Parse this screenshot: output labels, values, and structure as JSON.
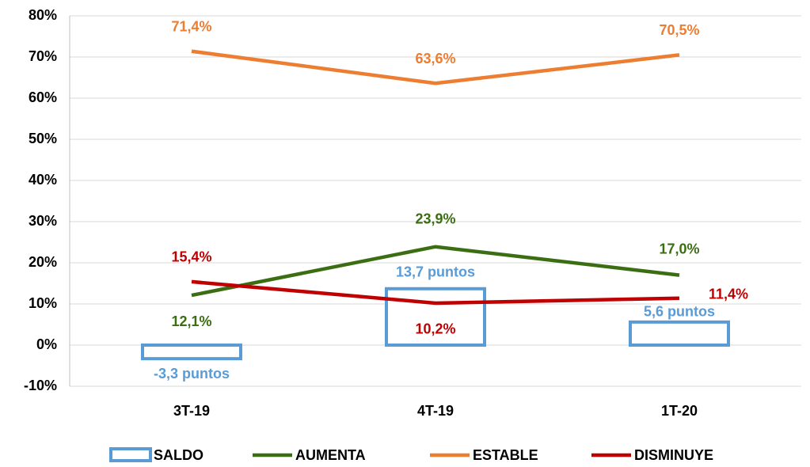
{
  "chart_data": {
    "type": "combo",
    "categories": [
      "3T-19",
      "4T-19",
      "1T-20"
    ],
    "series": [
      {
        "name": "SALDO",
        "type": "bar",
        "color": "#5b9bd5",
        "values": [
          -3.3,
          13.7,
          5.6
        ],
        "value_labels": [
          "-3,3 puntos",
          "13,7 puntos",
          "5,6 puntos"
        ]
      },
      {
        "name": "AUMENTA",
        "type": "line",
        "color": "#3b6e12",
        "values": [
          12.1,
          23.9,
          17.0
        ],
        "value_labels": [
          "12,1%",
          "23,9%",
          "17,0%"
        ]
      },
      {
        "name": "ESTABLE",
        "type": "line",
        "color": "#ed7d31",
        "values": [
          71.4,
          63.6,
          70.5
        ],
        "value_labels": [
          "71,4%",
          "63,6%",
          "70,5%"
        ]
      },
      {
        "name": "DISMINUYE",
        "type": "line",
        "color": "#c00000",
        "values": [
          15.4,
          10.2,
          11.4
        ],
        "value_labels": [
          "15,4%",
          "10,2%",
          "11,4%"
        ]
      }
    ],
    "ylim": [
      -10,
      80
    ],
    "yticks": [
      {
        "value": -10,
        "label": "-10%"
      },
      {
        "value": 0,
        "label": "0%"
      },
      {
        "value": 10,
        "label": "10%"
      },
      {
        "value": 20,
        "label": "20%"
      },
      {
        "value": 30,
        "label": "30%"
      },
      {
        "value": 40,
        "label": "40%"
      },
      {
        "value": 50,
        "label": "50%"
      },
      {
        "value": 60,
        "label": "60%"
      },
      {
        "value": 70,
        "label": "70%"
      },
      {
        "value": 80,
        "label": "80%"
      }
    ],
    "grid": true,
    "legend": "bottom"
  }
}
